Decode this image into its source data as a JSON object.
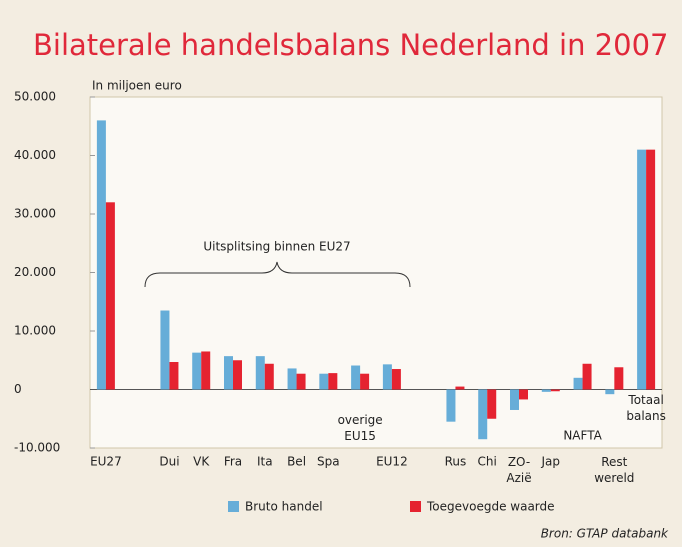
{
  "chart_data": {
    "type": "bar",
    "title": "Bilaterale handelsbalans Nederland in 2007",
    "ylabel": "In miljoen euro",
    "annotation": "Uitsplitsing binnen EU27",
    "source": "Bron: GTAP databank",
    "categories": [
      "EU27",
      null,
      "Dui",
      "VK",
      "Fra",
      "Ita",
      "Bel",
      "Spa",
      "overige EU15",
      "EU12",
      null,
      "Rus",
      "Chi",
      "ZO-Azië",
      "Jap",
      "NAFTA",
      "Rest wereld",
      "Totaal balans"
    ],
    "series": [
      {
        "name": "Bruto handel",
        "color": "#66add8",
        "values": [
          46000,
          null,
          13500,
          6300,
          5700,
          5700,
          3600,
          2700,
          4100,
          4300,
          null,
          -5500,
          -8500,
          -3500,
          -400,
          2000,
          -800,
          41000
        ]
      },
      {
        "name": "Toegevoegde waarde",
        "color": "#e52330",
        "values": [
          32000,
          null,
          4700,
          6500,
          5000,
          4400,
          2700,
          2800,
          2700,
          3500,
          null,
          500,
          -5000,
          -1700,
          -300,
          4400,
          3800,
          41000
        ]
      }
    ],
    "ylim": [
      -10000,
      50000
    ],
    "yticks": [
      {
        "value": -10000,
        "label": "-10.000"
      },
      0,
      {
        "value": 10000,
        "label": "10.000"
      },
      {
        "value": 20000,
        "label": "20.000"
      },
      {
        "value": 30000,
        "label": "30.000"
      },
      {
        "value": 40000,
        "label": "40.000"
      },
      {
        "value": 50000,
        "label": "50.000"
      }
    ],
    "grid": false
  }
}
